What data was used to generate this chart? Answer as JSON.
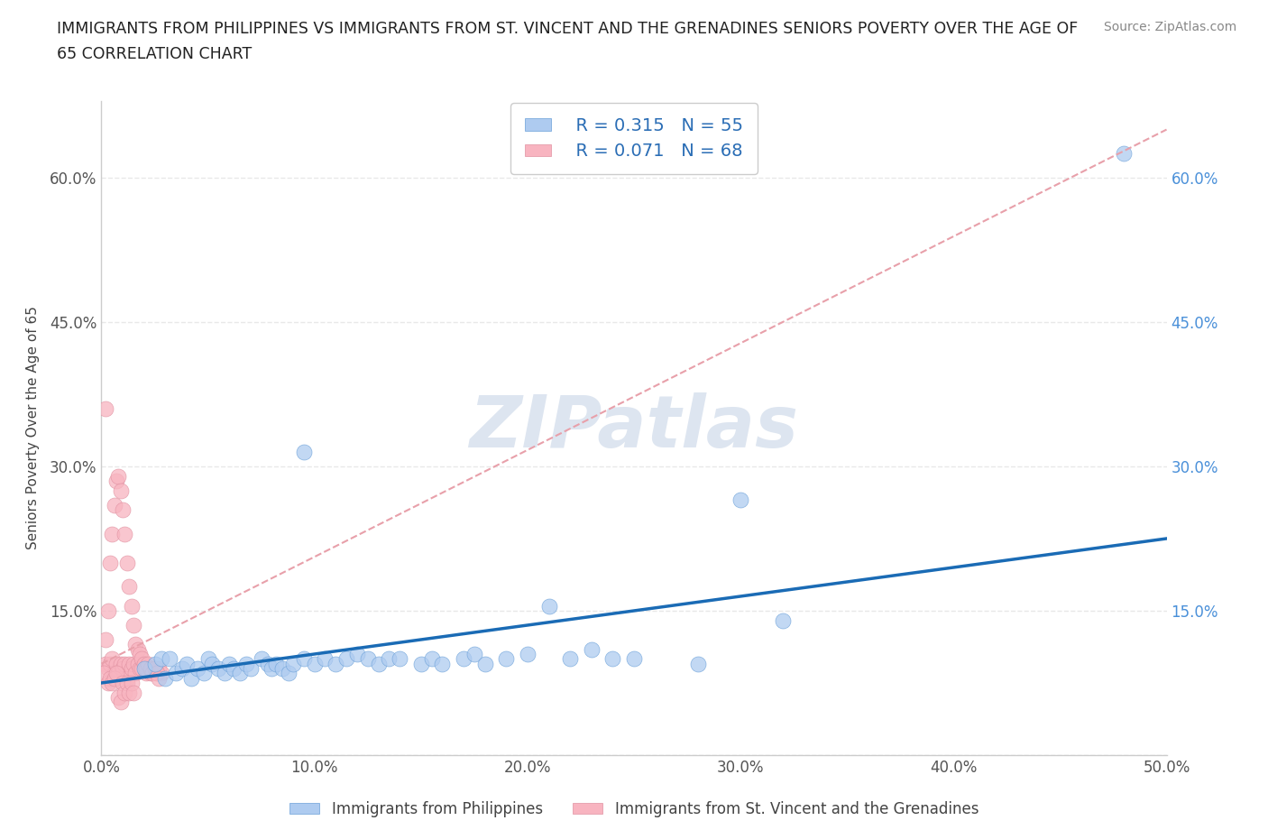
{
  "title_line1": "IMMIGRANTS FROM PHILIPPINES VS IMMIGRANTS FROM ST. VINCENT AND THE GRENADINES SENIORS POVERTY OVER THE AGE OF",
  "title_line2": "65 CORRELATION CHART",
  "source_text": "Source: ZipAtlas.com",
  "ylabel": "Seniors Poverty Over the Age of 65",
  "legend_label_1": "Immigrants from Philippines",
  "legend_label_2": "Immigrants from St. Vincent and the Grenadines",
  "R1": 0.315,
  "N1": 55,
  "R2": 0.071,
  "N2": 68,
  "color1": "#aecbf0",
  "color2": "#f8b4c0",
  "trendline1_color": "#1a6bb5",
  "trendline2_color": "#e8a0aa",
  "xlim": [
    0,
    0.5
  ],
  "ylim": [
    0,
    0.68
  ],
  "xticks": [
    0.0,
    0.1,
    0.2,
    0.3,
    0.4,
    0.5
  ],
  "yticks": [
    0.0,
    0.15,
    0.3,
    0.45,
    0.6
  ],
  "xticklabels": [
    "0.0%",
    "10.0%",
    "20.0%",
    "30.0%",
    "40.0%",
    "50.0%"
  ],
  "left_yticklabels": [
    "",
    "15.0%",
    "30.0%",
    "45.0%",
    "60.0%"
  ],
  "right_yticklabels": [
    "",
    "15.0%",
    "30.0%",
    "45.0%",
    "60.0%"
  ],
  "watermark": "ZIPatlas",
  "watermark_color": "#dde5f0",
  "grid_color": "#e8e8e8",
  "background_color": "#ffffff",
  "trendline1_y0": 0.075,
  "trendline1_y1": 0.225,
  "trendline2_y0": 0.095,
  "trendline2_y1": 0.65,
  "philippines_x": [
    0.02,
    0.025,
    0.028,
    0.03,
    0.032,
    0.035,
    0.038,
    0.04,
    0.042,
    0.045,
    0.048,
    0.05,
    0.052,
    0.055,
    0.058,
    0.06,
    0.062,
    0.065,
    0.068,
    0.07,
    0.075,
    0.078,
    0.08,
    0.082,
    0.085,
    0.088,
    0.09,
    0.095,
    0.1,
    0.105,
    0.11,
    0.115,
    0.12,
    0.125,
    0.13,
    0.135,
    0.14,
    0.15,
    0.155,
    0.16,
    0.17,
    0.175,
    0.18,
    0.19,
    0.2,
    0.21,
    0.22,
    0.23,
    0.24,
    0.25,
    0.28,
    0.3,
    0.32,
    0.48,
    0.095
  ],
  "philippines_y": [
    0.09,
    0.095,
    0.1,
    0.08,
    0.1,
    0.085,
    0.09,
    0.095,
    0.08,
    0.09,
    0.085,
    0.1,
    0.095,
    0.09,
    0.085,
    0.095,
    0.09,
    0.085,
    0.095,
    0.09,
    0.1,
    0.095,
    0.09,
    0.095,
    0.09,
    0.085,
    0.095,
    0.1,
    0.095,
    0.1,
    0.095,
    0.1,
    0.105,
    0.1,
    0.095,
    0.1,
    0.1,
    0.095,
    0.1,
    0.095,
    0.1,
    0.105,
    0.095,
    0.1,
    0.105,
    0.155,
    0.1,
    0.11,
    0.1,
    0.1,
    0.095,
    0.265,
    0.14,
    0.625,
    0.315
  ],
  "stv_x": [
    0.002,
    0.003,
    0.004,
    0.005,
    0.006,
    0.007,
    0.008,
    0.009,
    0.01,
    0.011,
    0.012,
    0.013,
    0.014,
    0.015,
    0.016,
    0.017,
    0.018,
    0.019,
    0.02,
    0.021,
    0.022,
    0.023,
    0.024,
    0.025,
    0.026,
    0.027,
    0.028,
    0.001,
    0.002,
    0.003,
    0.004,
    0.005,
    0.006,
    0.007,
    0.008,
    0.009,
    0.01,
    0.011,
    0.012,
    0.013,
    0.014,
    0.015,
    0.016,
    0.017,
    0.018,
    0.019,
    0.02,
    0.021,
    0.022,
    0.023,
    0.024,
    0.025,
    0.026,
    0.027,
    0.003,
    0.004,
    0.005,
    0.006,
    0.007,
    0.008,
    0.009,
    0.01,
    0.011,
    0.012,
    0.013,
    0.014,
    0.015,
    0.002
  ],
  "stv_y": [
    0.095,
    0.09,
    0.095,
    0.1,
    0.085,
    0.095,
    0.085,
    0.095,
    0.09,
    0.095,
    0.08,
    0.095,
    0.09,
    0.095,
    0.085,
    0.095,
    0.09,
    0.09,
    0.095,
    0.085,
    0.09,
    0.085,
    0.09,
    0.09,
    0.085,
    0.09,
    0.085,
    0.085,
    0.12,
    0.15,
    0.2,
    0.23,
    0.26,
    0.285,
    0.29,
    0.275,
    0.255,
    0.23,
    0.2,
    0.175,
    0.155,
    0.135,
    0.115,
    0.11,
    0.105,
    0.1,
    0.095,
    0.09,
    0.095,
    0.09,
    0.085,
    0.09,
    0.085,
    0.08,
    0.075,
    0.08,
    0.075,
    0.08,
    0.085,
    0.06,
    0.055,
    0.075,
    0.065,
    0.075,
    0.065,
    0.075,
    0.065,
    0.36
  ]
}
